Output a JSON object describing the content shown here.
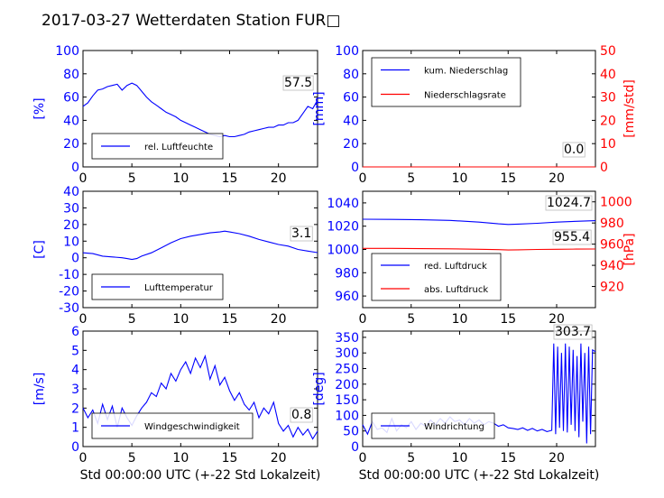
{
  "title": "2017-03-27 Wetterdaten Station FUR□",
  "colors": {
    "left_axis": "#0000ff",
    "right_axis": "#ff0000",
    "line_blue": "#0000ff",
    "line_red": "#ff0000",
    "line_light": "#8080ff"
  },
  "chart_data": [
    {
      "type": "line",
      "ylabel": "[%]",
      "xlabel": "",
      "xlim": [
        0,
        24
      ],
      "ylim": [
        0,
        100
      ],
      "xticks": [
        0,
        5,
        10,
        15,
        20
      ],
      "yticks": [
        0,
        20,
        40,
        60,
        80,
        100
      ],
      "legend": {
        "placement": "lower-left",
        "entries": [
          "rel. Luftfeuchte"
        ]
      },
      "annotation": "57.5",
      "series": [
        {
          "name": "rel. Luftfeuchte",
          "color": "#0000ff",
          "x": [
            0,
            0.5,
            1,
            1.5,
            2,
            2.5,
            3,
            3.5,
            4,
            4.5,
            5,
            5.5,
            6,
            6.5,
            7,
            7.5,
            8,
            8.5,
            9,
            9.5,
            10,
            10.5,
            11,
            11.5,
            12,
            12.5,
            13,
            13.5,
            14,
            14.5,
            15,
            15.5,
            16,
            16.5,
            17,
            17.5,
            18,
            18.5,
            19,
            19.5,
            20,
            20.5,
            21,
            21.5,
            22,
            22.5,
            23,
            23.5,
            24
          ],
          "y": [
            52,
            55,
            61,
            66,
            67,
            69,
            70,
            71,
            66,
            70,
            72,
            70,
            65,
            60,
            56,
            53,
            50,
            47,
            45,
            43,
            40,
            38,
            36,
            34,
            32,
            30,
            28,
            27,
            26,
            27,
            26,
            26,
            27,
            28,
            30,
            31,
            32,
            33,
            34,
            34,
            36,
            36,
            38,
            38,
            40,
            46,
            52,
            50,
            57.5
          ]
        }
      ]
    },
    {
      "type": "line",
      "ylabel": "[mm]",
      "ylabel_right": "[mm/std]",
      "xlabel": "",
      "xlim": [
        0,
        24
      ],
      "ylim": [
        0,
        100
      ],
      "ylim_right": [
        0,
        50
      ],
      "xticks": [
        0,
        5,
        10,
        15,
        20
      ],
      "yticks": [
        0,
        20,
        40,
        60,
        80,
        100
      ],
      "yticks_right": [
        0,
        10,
        20,
        30,
        40,
        50
      ],
      "legend": {
        "placement": "upper-left",
        "entries": [
          "kum. Niederschlag",
          "Niederschlagsrate"
        ]
      },
      "annotation": "0.0",
      "series": [
        {
          "name": "kum. Niederschlag",
          "color": "#0000ff",
          "axis": "left",
          "x": [
            0,
            24
          ],
          "y": [
            0,
            0
          ]
        },
        {
          "name": "Niederschlagsrate",
          "color": "#ff0000",
          "axis": "right",
          "x": [
            0,
            24
          ],
          "y": [
            0,
            0
          ]
        }
      ]
    },
    {
      "type": "line",
      "ylabel": "[C]",
      "xlabel": "",
      "xlim": [
        0,
        24
      ],
      "ylim": [
        -30,
        40
      ],
      "xticks": [
        0,
        5,
        10,
        15,
        20
      ],
      "yticks": [
        -30,
        -20,
        -10,
        0,
        10,
        20,
        30,
        40
      ],
      "legend": {
        "placement": "lower-left",
        "entries": [
          "Lufttemperatur"
        ]
      },
      "annotation": "3.1",
      "series": [
        {
          "name": "Lufttemperatur",
          "color": "#0000ff",
          "x": [
            0,
            1,
            2,
            3,
            4,
            4.5,
            5,
            5.5,
            6,
            7,
            8,
            9,
            10,
            11,
            12,
            13,
            14,
            14.5,
            15,
            16,
            17,
            18,
            19,
            20,
            21,
            22,
            23,
            24
          ],
          "y": [
            3,
            2.5,
            1,
            0.5,
            0,
            -0.5,
            -1,
            -0.5,
            1,
            3,
            6,
            9,
            11.5,
            13,
            14,
            15,
            15.5,
            16,
            15.5,
            14.5,
            13,
            11,
            9.5,
            8,
            7,
            5,
            4,
            3.1
          ]
        }
      ]
    },
    {
      "type": "line",
      "ylabel": "",
      "ylabel_right": "[hPa]",
      "xlabel": "",
      "xlim": [
        0,
        24
      ],
      "ylim": [
        950,
        1050
      ],
      "ylim_right": [
        900,
        1010
      ],
      "xticks": [
        0,
        5,
        10,
        15,
        20
      ],
      "yticks": [
        960,
        980,
        1000,
        1020,
        1040
      ],
      "yticks_right": [
        920,
        940,
        960,
        980,
        1000
      ],
      "legend": {
        "placement": "lower-left",
        "entries": [
          "red. Luftdruck",
          "abs. Luftdruck"
        ]
      },
      "annotations": [
        "1024.7",
        "955.4"
      ],
      "series": [
        {
          "name": "red. Luftdruck",
          "color": "#0000ff",
          "axis": "left",
          "x": [
            0,
            3,
            6,
            9,
            12,
            14,
            15,
            16,
            18,
            20,
            22,
            24
          ],
          "y": [
            1026,
            1025.8,
            1025.5,
            1025,
            1023.5,
            1022,
            1021.5,
            1021.8,
            1022.5,
            1023.5,
            1024.2,
            1024.7
          ]
        },
        {
          "name": "abs. Luftdruck",
          "color": "#ff0000",
          "axis": "right",
          "x": [
            0,
            3,
            6,
            9,
            12,
            14,
            15,
            16,
            18,
            20,
            22,
            24
          ],
          "y": [
            956,
            956,
            955.8,
            955.6,
            955.2,
            954.8,
            954.5,
            954.7,
            955,
            955.2,
            955.3,
            955.4
          ]
        }
      ]
    },
    {
      "type": "line",
      "ylabel": "[m/s]",
      "xlabel": "Std 00:00:00 UTC (+-22 Std Lokalzeit)",
      "xlim": [
        0,
        24
      ],
      "ylim": [
        0,
        6
      ],
      "xticks": [
        0,
        5,
        10,
        15,
        20
      ],
      "yticks": [
        0,
        1,
        2,
        3,
        4,
        5,
        6
      ],
      "legend": {
        "placement": "lower-left",
        "entries": [
          "Windgeschwindigkeit"
        ]
      },
      "annotation": "0.8",
      "series": [
        {
          "name": "Windgeschwindigkeit",
          "color": "#0000ff",
          "x": [
            0,
            0.5,
            1,
            1.5,
            2,
            2.5,
            3,
            3.5,
            4,
            4.5,
            5,
            5.5,
            6,
            6.5,
            7,
            7.5,
            8,
            8.5,
            9,
            9.5,
            10,
            10.5,
            11,
            11.5,
            12,
            12.5,
            13,
            13.5,
            14,
            14.5,
            15,
            15.5,
            16,
            16.5,
            17,
            17.5,
            18,
            18.5,
            19,
            19.5,
            20,
            20.5,
            21,
            21.5,
            22,
            22.5,
            23,
            23.5,
            24
          ],
          "y": [
            2.0,
            1.5,
            1.9,
            1.2,
            2.2,
            1.4,
            2.1,
            1.0,
            2.0,
            1.5,
            1.1,
            1.6,
            2.0,
            2.3,
            2.8,
            2.6,
            3.3,
            3.0,
            3.8,
            3.4,
            4.0,
            4.4,
            3.8,
            4.6,
            4.1,
            4.7,
            3.5,
            4.2,
            3.2,
            3.6,
            2.9,
            2.4,
            2.8,
            2.2,
            1.9,
            2.3,
            1.5,
            2.0,
            1.7,
            2.3,
            1.2,
            0.8,
            1.1,
            0.5,
            1.0,
            0.6,
            0.9,
            0.4,
            0.8
          ]
        }
      ]
    },
    {
      "type": "line",
      "ylabel": "[deg]",
      "xlabel": "Std 00:00:00 UTC (+-22 Std Lokalzeit)",
      "xlim": [
        0,
        24
      ],
      "ylim": [
        0,
        370
      ],
      "xticks": [
        0,
        5,
        10,
        15,
        20
      ],
      "yticks": [
        0,
        50,
        100,
        150,
        200,
        250,
        300,
        350
      ],
      "legend": {
        "placement": "lower-left",
        "entries": [
          "Windrichtung"
        ]
      },
      "annotation": "303.7",
      "series": [
        {
          "name": "Windrichtung",
          "color": "#0000ff",
          "x": [
            0,
            0.5,
            1,
            1.5,
            2,
            2.5,
            3,
            3.5,
            4,
            4.5,
            5,
            5.5,
            6,
            6.5,
            7,
            7.5,
            8,
            8.5,
            9,
            9.5,
            10,
            10.5,
            11,
            11.5,
            12,
            12.5,
            13,
            13.5,
            14,
            14.5,
            15,
            15.5,
            16,
            16.5,
            17,
            17.5,
            18,
            18.5,
            19,
            19.5,
            19.7,
            19.9,
            20.1,
            20.3,
            20.5,
            20.7,
            20.9,
            21.1,
            21.3,
            21.5,
            21.7,
            21.9,
            22.1,
            22.3,
            22.5,
            22.7,
            22.9,
            23.1,
            23.3,
            23.5,
            23.7,
            24
          ],
          "y": [
            70,
            40,
            80,
            55,
            60,
            45,
            90,
            50,
            70,
            60,
            80,
            55,
            75,
            65,
            85,
            70,
            90,
            75,
            95,
            80,
            85,
            70,
            90,
            75,
            85,
            70,
            80,
            75,
            65,
            70,
            60,
            58,
            55,
            60,
            52,
            58,
            50,
            55,
            48,
            52,
            330,
            40,
            320,
            60,
            300,
            50,
            330,
            45,
            320,
            70,
            310,
            50,
            290,
            30,
            330,
            80,
            300,
            10,
            320,
            40,
            310,
            304
          ]
        }
      ]
    }
  ]
}
